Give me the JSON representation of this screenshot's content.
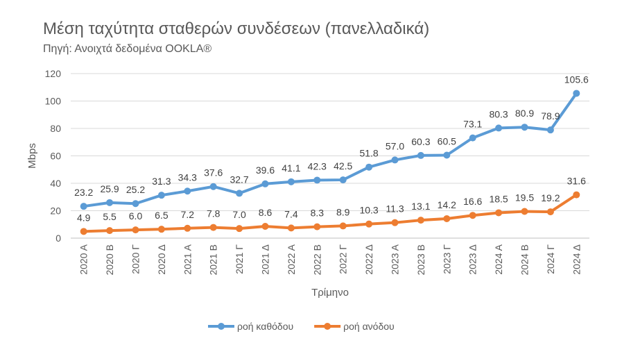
{
  "title": "Μέση ταχύτητα σταθερών συνδέσεων (πανελλαδικά)",
  "subtitle": "Πηγή: Ανοιχτά δεδομένα OOKLA®",
  "chart_data": {
    "type": "line",
    "categories": [
      "2020 Α",
      "2020 Β",
      "2020 Γ",
      "2020 Δ",
      "2021 Α",
      "2021 Β",
      "2021 Γ",
      "2021 Δ",
      "2022 Α",
      "2022 Β",
      "2022 Γ",
      "2022 Δ",
      "2023 Α",
      "2023 Β",
      "2023 Γ",
      "2023 Δ",
      "2024 Α",
      "2024 Β",
      "2024 Γ",
      "2024 Δ"
    ],
    "series": [
      {
        "name": "ροή καθόδου",
        "color": "#5B9BD5",
        "values": [
          23.2,
          25.9,
          25.2,
          31.3,
          34.3,
          37.6,
          32.7,
          39.6,
          41.1,
          42.3,
          42.5,
          51.8,
          57.0,
          60.3,
          60.5,
          73.1,
          80.3,
          80.9,
          78.9,
          105.6
        ],
        "labels": [
          "23.2",
          "25.9",
          "25.2",
          "31.3",
          "34.3",
          "37.6",
          "32.7",
          "39.6",
          "41.1",
          "42.3",
          "42.5",
          "51.8",
          "57.0",
          "60.3",
          "60.5",
          "73.1",
          "80.3",
          "80.9",
          "78.9",
          "105.6"
        ]
      },
      {
        "name": "ροή ανόδου",
        "color": "#ED7D31",
        "values": [
          4.9,
          5.5,
          6.0,
          6.5,
          7.2,
          7.8,
          7.0,
          8.6,
          7.4,
          8.3,
          8.9,
          10.3,
          11.3,
          13.1,
          14.2,
          16.6,
          18.5,
          19.5,
          19.2,
          31.6
        ],
        "labels": [
          "4.9",
          "5.5",
          "6.0",
          "6.5",
          "7.2",
          "7.8",
          "7.0",
          "8.6",
          "7.4",
          "8.3",
          "8.9",
          "10.3",
          "11.3",
          "13.1",
          "14.2",
          "16.6",
          "18.5",
          "19.5",
          "19.2",
          "31.6"
        ]
      }
    ],
    "xlabel": "Τρίμηνο",
    "ylabel": "Mbps",
    "ylim": [
      0,
      120
    ],
    "yticks": [
      "0",
      "20",
      "40",
      "60",
      "80",
      "100",
      "120"
    ],
    "grid": true,
    "legend_position": "bottom"
  }
}
